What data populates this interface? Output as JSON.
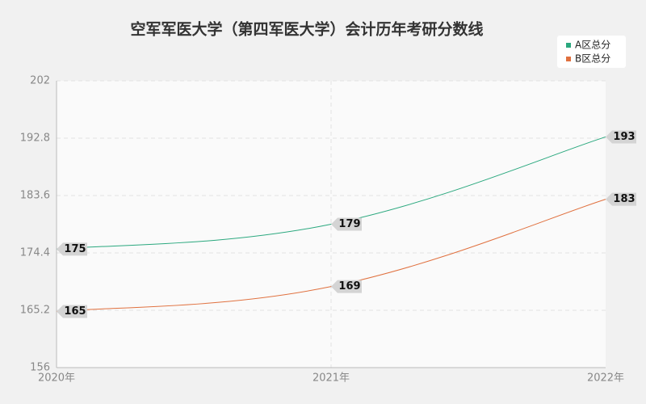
{
  "chart_data": {
    "type": "line",
    "title": "空军军医大学（第四军医大学）会计历年考研分数线",
    "categories": [
      "2020年",
      "2021年",
      "2022年"
    ],
    "series": [
      {
        "name": "A区总分",
        "color": "#2aa87e",
        "values": [
          175,
          179,
          193
        ]
      },
      {
        "name": "B区总分",
        "color": "#e0703e",
        "values": [
          165,
          169,
          183
        ]
      }
    ],
    "ylim": [
      156,
      202
    ],
    "yticks": [
      156,
      165.2,
      174.4,
      183.6,
      192.8,
      202
    ],
    "grid": true,
    "legend": "top-right"
  }
}
